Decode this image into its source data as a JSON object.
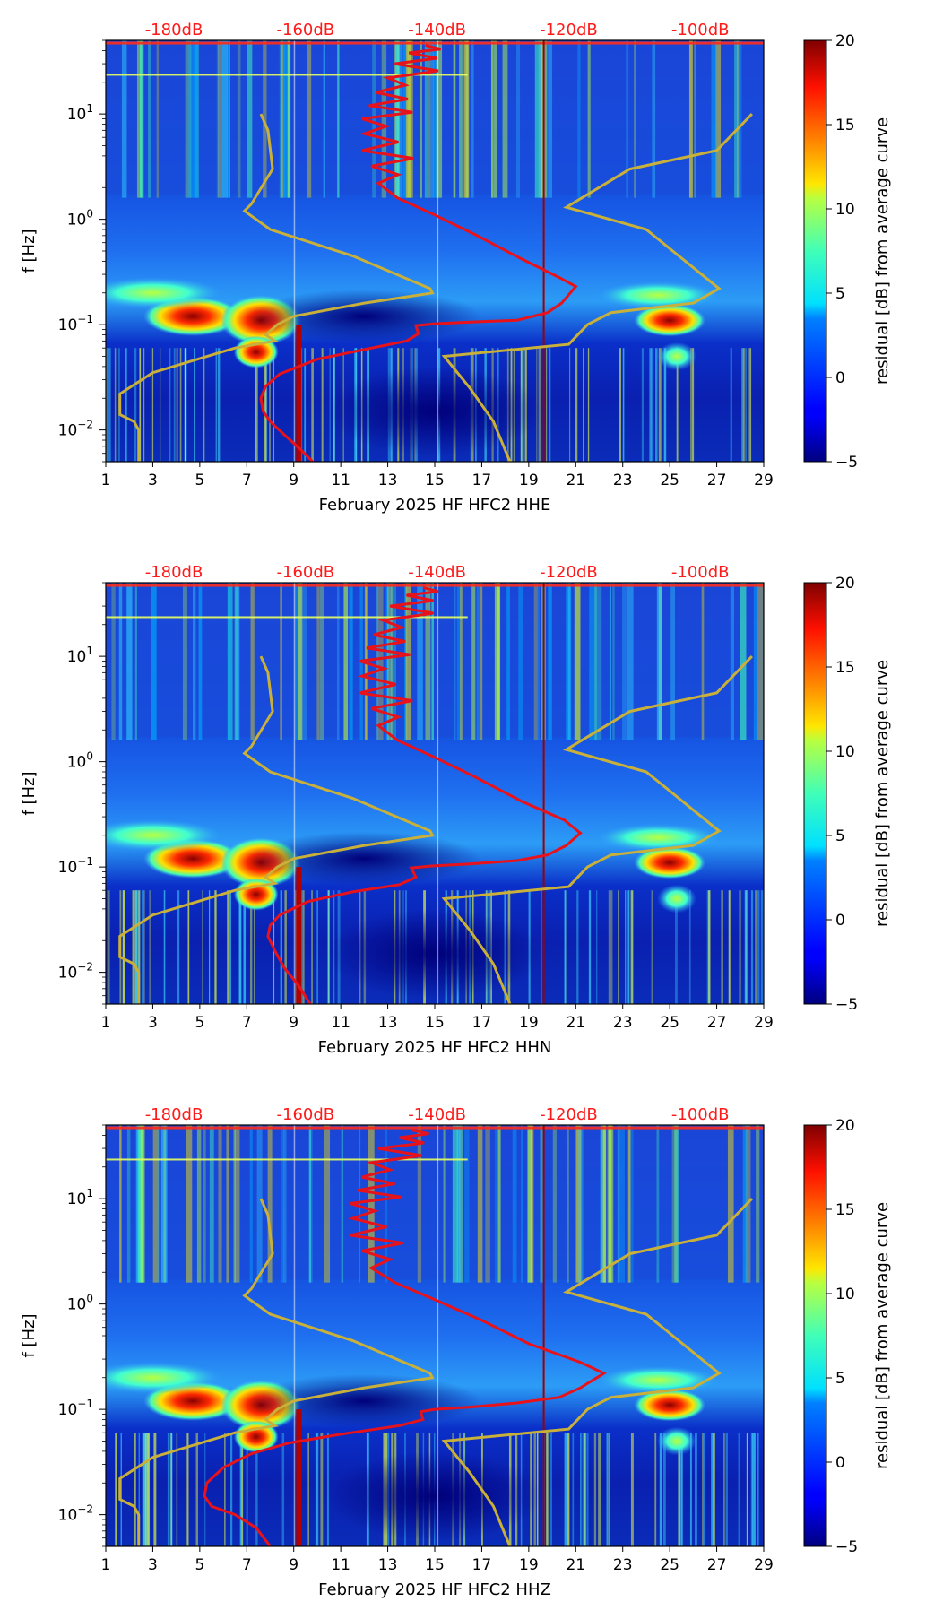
{
  "chart_data": [
    {
      "type": "heatmap",
      "component": "HHE",
      "xlabel": "February 2025 HF HFC2  HHE",
      "ylabel": "f [Hz]",
      "x_ticks": [
        1,
        3,
        5,
        7,
        9,
        11,
        13,
        15,
        17,
        19,
        21,
        23,
        25,
        27,
        29
      ],
      "xlim": [
        1,
        29
      ],
      "ylim_hz": [
        0.005,
        50
      ],
      "y_ticks": [
        {
          "value": 0.01,
          "base": "10",
          "exp": "−2"
        },
        {
          "value": 0.1,
          "base": "10",
          "exp": "−1"
        },
        {
          "value": 1,
          "base": "10",
          "exp": "0"
        },
        {
          "value": 10,
          "base": "10",
          "exp": "1"
        }
      ],
      "top_db_ticks": [
        {
          "day": 3.9,
          "label": "-180dB"
        },
        {
          "day": 9.5,
          "label": "-160dB"
        },
        {
          "day": 15.1,
          "label": "-140dB"
        },
        {
          "day": 20.7,
          "label": "-120dB"
        },
        {
          "day": 26.3,
          "label": "-100dB"
        }
      ],
      "colorbar": {
        "label": "residual [dB] from average curve",
        "min": -5,
        "max": 20,
        "ticks": [
          -5,
          0,
          5,
          10,
          15,
          20
        ]
      },
      "median_curve_color": "#e8121a",
      "model_curve_color": "#c9b03a",
      "median_curve": [
        [
          14.6,
          45
        ],
        [
          13.9,
          38
        ],
        [
          13.3,
          30
        ],
        [
          13.0,
          22
        ],
        [
          12.5,
          16
        ],
        [
          12.2,
          12
        ],
        [
          11.9,
          9
        ],
        [
          12.0,
          6.5
        ],
        [
          11.9,
          4.5
        ],
        [
          12.3,
          3.2
        ],
        [
          12.6,
          2.2
        ],
        [
          13.4,
          1.6
        ],
        [
          15.0,
          1.1
        ],
        [
          16.8,
          0.7
        ],
        [
          18.7,
          0.42
        ],
        [
          20.3,
          0.28
        ],
        [
          21.0,
          0.23
        ],
        [
          20.4,
          0.16
        ],
        [
          19.8,
          0.13
        ],
        [
          18.5,
          0.11
        ],
        [
          17.0,
          0.107
        ],
        [
          15.0,
          0.102
        ],
        [
          14.2,
          0.098
        ],
        [
          14.3,
          0.082
        ],
        [
          13.8,
          0.07
        ],
        [
          12.0,
          0.058
        ],
        [
          10.0,
          0.047
        ],
        [
          8.4,
          0.034
        ],
        [
          7.8,
          0.026
        ],
        [
          7.6,
          0.02
        ],
        [
          7.7,
          0.015
        ],
        [
          8.0,
          0.012
        ],
        [
          8.6,
          0.009
        ],
        [
          9.3,
          0.0065
        ],
        [
          9.8,
          0.005
        ]
      ],
      "model_lnm": [
        [
          7.6,
          10
        ],
        [
          7.9,
          7
        ],
        [
          8.1,
          3
        ],
        [
          7.2,
          1.4
        ],
        [
          6.9,
          1.2
        ],
        [
          8.0,
          0.8
        ],
        [
          11.5,
          0.45
        ],
        [
          14.8,
          0.22
        ],
        [
          14.9,
          0.2
        ],
        [
          12.0,
          0.16
        ],
        [
          9.0,
          0.12
        ],
        [
          8.3,
          0.1
        ],
        [
          7.8,
          0.08
        ],
        [
          8.2,
          0.07
        ],
        [
          6.5,
          0.06
        ],
        [
          3.0,
          0.035
        ],
        [
          1.6,
          0.022
        ],
        [
          1.6,
          0.014
        ],
        [
          2.2,
          0.012
        ],
        [
          2.4,
          0.01
        ],
        [
          2.4,
          0.005
        ]
      ],
      "model_hnm": [
        [
          28.5,
          10
        ],
        [
          27.0,
          4.5
        ],
        [
          23.3,
          3
        ],
        [
          20.6,
          1.3
        ],
        [
          24.0,
          0.8
        ],
        [
          27.1,
          0.22
        ],
        [
          26.0,
          0.16
        ],
        [
          22.5,
          0.13
        ],
        [
          21.5,
          0.1
        ],
        [
          20.7,
          0.065
        ],
        [
          15.4,
          0.05
        ],
        [
          16.5,
          0.025
        ],
        [
          17.5,
          0.012
        ],
        [
          18.2,
          0.005
        ]
      ]
    },
    {
      "type": "heatmap",
      "component": "HHN",
      "xlabel": "February 2025 HF HFC2  HHN",
      "ylabel": "f [Hz]",
      "x_ticks": [
        1,
        3,
        5,
        7,
        9,
        11,
        13,
        15,
        17,
        19,
        21,
        23,
        25,
        27,
        29
      ],
      "xlim": [
        1,
        29
      ],
      "ylim_hz": [
        0.005,
        50
      ],
      "y_ticks": [
        {
          "value": 0.01,
          "base": "10",
          "exp": "−2"
        },
        {
          "value": 0.1,
          "base": "10",
          "exp": "−1"
        },
        {
          "value": 1,
          "base": "10",
          "exp": "0"
        },
        {
          "value": 10,
          "base": "10",
          "exp": "1"
        }
      ],
      "top_db_ticks": [
        {
          "day": 3.9,
          "label": "-180dB"
        },
        {
          "day": 9.5,
          "label": "-160dB"
        },
        {
          "day": 15.1,
          "label": "-140dB"
        },
        {
          "day": 20.7,
          "label": "-120dB"
        },
        {
          "day": 26.3,
          "label": "-100dB"
        }
      ],
      "colorbar": {
        "label": "residual [dB] from average curve",
        "min": -5,
        "max": 20,
        "ticks": [
          -5,
          0,
          5,
          10,
          15,
          20
        ]
      },
      "median_curve_color": "#e8121a",
      "model_curve_color": "#c9b03a",
      "median_curve": [
        [
          14.5,
          45
        ],
        [
          13.8,
          38
        ],
        [
          13.1,
          30
        ],
        [
          12.8,
          22
        ],
        [
          12.4,
          16
        ],
        [
          12.1,
          12
        ],
        [
          11.8,
          9
        ],
        [
          11.9,
          6.5
        ],
        [
          11.8,
          4.5
        ],
        [
          12.3,
          3.2
        ],
        [
          12.6,
          2.2
        ],
        [
          13.4,
          1.6
        ],
        [
          15.0,
          1.1
        ],
        [
          16.8,
          0.7
        ],
        [
          18.7,
          0.42
        ],
        [
          20.5,
          0.28
        ],
        [
          21.2,
          0.21
        ],
        [
          20.6,
          0.16
        ],
        [
          19.8,
          0.13
        ],
        [
          18.5,
          0.115
        ],
        [
          16.5,
          0.107
        ],
        [
          14.8,
          0.102
        ],
        [
          14.0,
          0.098
        ],
        [
          14.2,
          0.08
        ],
        [
          13.5,
          0.068
        ],
        [
          11.5,
          0.058
        ],
        [
          9.6,
          0.047
        ],
        [
          8.4,
          0.035
        ],
        [
          8.0,
          0.028
        ],
        [
          7.9,
          0.022
        ],
        [
          8.2,
          0.016
        ],
        [
          8.6,
          0.011
        ],
        [
          9.2,
          0.0075
        ],
        [
          9.7,
          0.005
        ]
      ],
      "model_lnm": [
        [
          7.6,
          10
        ],
        [
          7.9,
          7
        ],
        [
          8.1,
          3
        ],
        [
          7.2,
          1.4
        ],
        [
          6.9,
          1.2
        ],
        [
          8.0,
          0.8
        ],
        [
          11.5,
          0.45
        ],
        [
          14.8,
          0.22
        ],
        [
          14.9,
          0.2
        ],
        [
          12.0,
          0.16
        ],
        [
          9.0,
          0.12
        ],
        [
          8.3,
          0.1
        ],
        [
          7.8,
          0.08
        ],
        [
          8.2,
          0.07
        ],
        [
          6.5,
          0.06
        ],
        [
          3.0,
          0.035
        ],
        [
          1.6,
          0.022
        ],
        [
          1.6,
          0.014
        ],
        [
          2.2,
          0.012
        ],
        [
          2.4,
          0.01
        ],
        [
          2.4,
          0.005
        ]
      ],
      "model_hnm": [
        [
          28.5,
          10
        ],
        [
          27.0,
          4.5
        ],
        [
          23.3,
          3
        ],
        [
          20.6,
          1.3
        ],
        [
          24.0,
          0.8
        ],
        [
          27.1,
          0.22
        ],
        [
          26.0,
          0.16
        ],
        [
          22.5,
          0.13
        ],
        [
          21.5,
          0.1
        ],
        [
          20.7,
          0.065
        ],
        [
          15.4,
          0.05
        ],
        [
          16.5,
          0.025
        ],
        [
          17.5,
          0.012
        ],
        [
          18.2,
          0.005
        ]
      ]
    },
    {
      "type": "heatmap",
      "component": "HHZ",
      "xlabel": "February 2025 HF HFC2  HHZ",
      "ylabel": "f [Hz]",
      "x_ticks": [
        1,
        3,
        5,
        7,
        9,
        11,
        13,
        15,
        17,
        19,
        21,
        23,
        25,
        27,
        29
      ],
      "xlim": [
        1,
        29
      ],
      "ylim_hz": [
        0.005,
        50
      ],
      "y_ticks": [
        {
          "value": 0.01,
          "base": "10",
          "exp": "−2"
        },
        {
          "value": 0.1,
          "base": "10",
          "exp": "−1"
        },
        {
          "value": 1,
          "base": "10",
          "exp": "0"
        },
        {
          "value": 10,
          "base": "10",
          "exp": "1"
        }
      ],
      "top_db_ticks": [
        {
          "day": 3.9,
          "label": "-180dB"
        },
        {
          "day": 9.5,
          "label": "-160dB"
        },
        {
          "day": 15.1,
          "label": "-140dB"
        },
        {
          "day": 20.7,
          "label": "-120dB"
        },
        {
          "day": 26.3,
          "label": "-100dB"
        }
      ],
      "colorbar": {
        "label": "residual [dB] from average curve",
        "min": -5,
        "max": 20,
        "ticks": [
          -5,
          0,
          5,
          10,
          15,
          20
        ]
      },
      "median_curve_color": "#e8121a",
      "model_curve_color": "#c9b03a",
      "median_curve": [
        [
          14.0,
          45
        ],
        [
          13.5,
          38
        ],
        [
          12.6,
          30
        ],
        [
          12.3,
          22
        ],
        [
          11.9,
          16
        ],
        [
          11.7,
          12
        ],
        [
          11.4,
          9
        ],
        [
          11.5,
          6.5
        ],
        [
          11.4,
          4.5
        ],
        [
          11.9,
          3.2
        ],
        [
          12.3,
          2.2
        ],
        [
          13.3,
          1.6
        ],
        [
          15.0,
          1.1
        ],
        [
          17.0,
          0.7
        ],
        [
          19.0,
          0.42
        ],
        [
          21.2,
          0.28
        ],
        [
          22.2,
          0.22
        ],
        [
          21.2,
          0.16
        ],
        [
          20.3,
          0.13
        ],
        [
          18.5,
          0.115
        ],
        [
          16.5,
          0.105
        ],
        [
          15.0,
          0.1
        ],
        [
          14.4,
          0.095
        ],
        [
          14.5,
          0.08
        ],
        [
          13.5,
          0.07
        ],
        [
          11.0,
          0.058
        ],
        [
          8.8,
          0.048
        ],
        [
          7.2,
          0.038
        ],
        [
          6.0,
          0.028
        ],
        [
          5.3,
          0.02
        ],
        [
          5.2,
          0.015
        ],
        [
          5.5,
          0.012
        ],
        [
          6.5,
          0.01
        ],
        [
          7.4,
          0.0075
        ],
        [
          8.0,
          0.005
        ]
      ],
      "model_lnm": [
        [
          7.6,
          10
        ],
        [
          7.9,
          7
        ],
        [
          8.1,
          3
        ],
        [
          7.2,
          1.4
        ],
        [
          6.9,
          1.2
        ],
        [
          8.0,
          0.8
        ],
        [
          11.5,
          0.45
        ],
        [
          14.8,
          0.22
        ],
        [
          14.9,
          0.2
        ],
        [
          12.0,
          0.16
        ],
        [
          9.0,
          0.12
        ],
        [
          8.3,
          0.1
        ],
        [
          7.8,
          0.08
        ],
        [
          8.2,
          0.07
        ],
        [
          6.5,
          0.06
        ],
        [
          3.0,
          0.035
        ],
        [
          1.6,
          0.022
        ],
        [
          1.6,
          0.014
        ],
        [
          2.2,
          0.012
        ],
        [
          2.4,
          0.01
        ],
        [
          2.4,
          0.005
        ]
      ],
      "model_hnm": [
        [
          28.5,
          10
        ],
        [
          27.0,
          4.5
        ],
        [
          23.3,
          3
        ],
        [
          20.6,
          1.3
        ],
        [
          24.0,
          0.8
        ],
        [
          27.1,
          0.22
        ],
        [
          26.0,
          0.16
        ],
        [
          22.5,
          0.13
        ],
        [
          21.5,
          0.1
        ],
        [
          20.7,
          0.065
        ],
        [
          15.4,
          0.05
        ],
        [
          16.5,
          0.025
        ],
        [
          17.5,
          0.012
        ],
        [
          18.2,
          0.005
        ]
      ]
    }
  ]
}
